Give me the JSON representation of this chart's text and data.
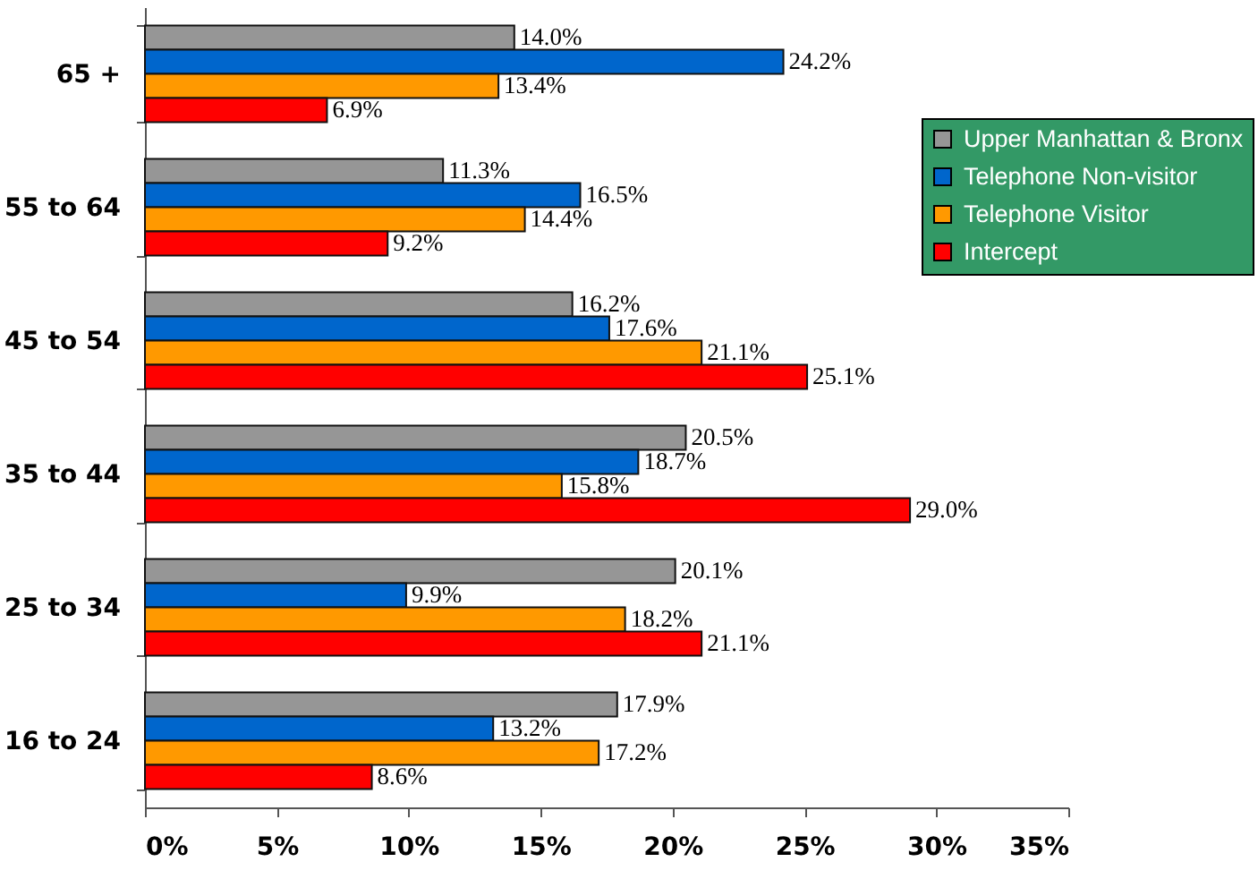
{
  "chart_data": {
    "type": "bar",
    "orientation": "horizontal",
    "categories": [
      "65 +",
      "55 to 64",
      "45 to 54",
      "35 to 44",
      "25 to 34",
      "16 to 24"
    ],
    "series": [
      {
        "name": "Upper Manhattan & Bronx",
        "color": "#969696",
        "values": [
          14.0,
          11.3,
          16.2,
          20.5,
          20.1,
          17.9
        ],
        "value_labels": [
          "14.0%",
          "11.3%",
          "16.2%",
          "20.5%",
          "20.1%",
          "17.9%"
        ]
      },
      {
        "name": "Telephone Non-visitor",
        "color": "#0066cc",
        "values": [
          24.2,
          16.5,
          17.6,
          18.7,
          9.9,
          13.2
        ],
        "value_labels": [
          "24.2%",
          "16.5%",
          "17.6%",
          "18.7%",
          "9.9%",
          "13.2%"
        ]
      },
      {
        "name": "Telephone Visitor",
        "color": "#ff9900",
        "values": [
          13.4,
          14.4,
          21.1,
          15.8,
          18.2,
          17.2
        ],
        "value_labels": [
          "13.4%",
          "14.4%",
          "21.1%",
          "15.8%",
          "18.2%",
          "17.2%"
        ]
      },
      {
        "name": "Intercept",
        "color": "#ff0000",
        "values": [
          6.9,
          9.2,
          25.1,
          29.0,
          21.1,
          8.6
        ],
        "value_labels": [
          "6.9%",
          "9.2%",
          "25.1%",
          "29.0%",
          "21.1%",
          "8.6%"
        ]
      }
    ],
    "xlim": [
      0,
      35
    ],
    "xticks": [
      {
        "value": 0,
        "label": "0%"
      },
      {
        "value": 5,
        "label": "5%"
      },
      {
        "value": 10,
        "label": "10%"
      },
      {
        "value": 15,
        "label": "15%"
      },
      {
        "value": 20,
        "label": "20%"
      },
      {
        "value": 25,
        "label": "25%"
      },
      {
        "value": 30,
        "label": "30%"
      },
      {
        "value": 35,
        "label": "35%"
      }
    ],
    "legend": "right"
  }
}
